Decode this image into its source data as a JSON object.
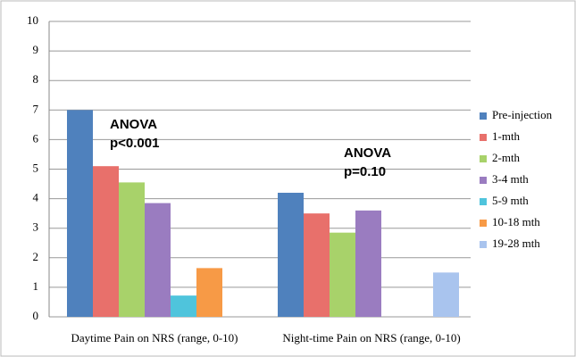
{
  "chart_data": {
    "type": "bar",
    "categories": [
      "Daytime Pain on NRS (range, 0-10)",
      "Night-time Pain on NRS (range, 0-10)"
    ],
    "series": [
      {
        "name": "Pre-injection",
        "color": "#4f81bd",
        "values": [
          7.0,
          4.2
        ]
      },
      {
        "name": "1-mth",
        "color": "#e8706b",
        "values": [
          5.1,
          3.5
        ]
      },
      {
        "name": "2-mth",
        "color": "#a8d26a",
        "values": [
          4.55,
          2.85
        ]
      },
      {
        "name": "3-4 mth",
        "color": "#9a7cc0",
        "values": [
          3.85,
          3.6
        ]
      },
      {
        "name": "5-9 mth",
        "color": "#4fc4dc",
        "values": [
          0.72,
          null
        ]
      },
      {
        "name": "10-18 mth",
        "color": "#f79a46",
        "values": [
          1.65,
          null
        ]
      },
      {
        "name": "19-28 mth",
        "color": "#a9c4ee",
        "values": [
          null,
          1.5
        ]
      }
    ],
    "annotations": [
      [
        "ANOVA",
        "p<0.001"
      ],
      [
        "ANOVA",
        "p=0.10"
      ]
    ],
    "ylim": [
      0,
      10
    ],
    "yticks": [
      0,
      1,
      2,
      3,
      4,
      5,
      6,
      7,
      8,
      9,
      10
    ],
    "grid": true,
    "legend": "right"
  }
}
